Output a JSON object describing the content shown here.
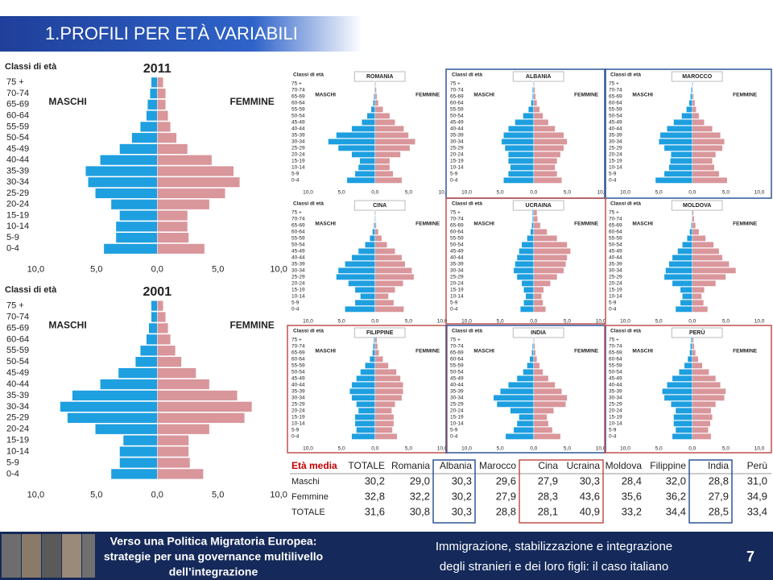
{
  "header": {
    "title": "1.PROFILI PER ETÀ VARIABILI"
  },
  "chart_data": [
    {
      "type": "pyramid",
      "title": "2011",
      "y_label": "Classi di età",
      "categories": [
        "75 +",
        "70-74",
        "65-69",
        "60-64",
        "55-59",
        "50-54",
        "45-49",
        "40-44",
        "35-39",
        "30-34",
        "25-29",
        "20-24",
        "15-19",
        "10-14",
        "5-9",
        "0-4"
      ],
      "series": [
        {
          "name": "MASCHI",
          "color": "#1e9fe0",
          "values": [
            0.5,
            0.6,
            0.8,
            0.9,
            1.4,
            2.1,
            3.1,
            4.7,
            5.9,
            5.7,
            5.1,
            3.8,
            3.1,
            3.4,
            3.4,
            4.4
          ]
        },
        {
          "name": "FEMMINE",
          "color": "#d9969b",
          "values": [
            0.5,
            0.7,
            0.7,
            0.9,
            1.1,
            1.6,
            2.5,
            4.5,
            6.3,
            6.8,
            5.6,
            4.3,
            2.5,
            2.5,
            2.6,
            3.9
          ]
        }
      ],
      "xlim": [
        0,
        10
      ],
      "xticks": [
        {
          "value": 10,
          "label": "10,0"
        },
        {
          "value": 5,
          "label": "5,0"
        },
        {
          "value": 0,
          "label": "0,0"
        },
        {
          "value": 5,
          "label": "5,0"
        },
        {
          "value": 10,
          "label": "10,0"
        }
      ]
    },
    {
      "type": "pyramid",
      "title": "2001",
      "y_label": "Classi di età",
      "categories": [
        "75 +",
        "70-74",
        "65-69",
        "60-64",
        "55-59",
        "50-54",
        "45-49",
        "40-44",
        "35-39",
        "30-34",
        "25-29",
        "20-24",
        "15-19",
        "10-14",
        "5-9",
        "0-4"
      ],
      "series": [
        {
          "name": "MASCHI",
          "color": "#1e9fe0",
          "values": [
            0.5,
            0.5,
            0.7,
            0.9,
            1.4,
            1.8,
            3.2,
            4.7,
            7.0,
            8.0,
            7.4,
            5.1,
            2.8,
            3.1,
            3.1,
            3.8
          ]
        },
        {
          "name": "FEMMINE",
          "color": "#d9969b",
          "values": [
            0.5,
            0.7,
            0.9,
            1.1,
            1.5,
            2.0,
            3.2,
            4.3,
            6.6,
            7.8,
            7.2,
            4.3,
            2.6,
            2.6,
            2.7,
            3.8
          ]
        }
      ],
      "xlim": [
        0,
        10
      ],
      "xticks": [
        {
          "value": 10,
          "label": "10,0"
        },
        {
          "value": 5,
          "label": "5,0"
        },
        {
          "value": 0,
          "label": "0,0"
        },
        {
          "value": 5,
          "label": "5,0"
        },
        {
          "value": 10,
          "label": "10,0"
        }
      ]
    },
    {
      "type": "pyramid",
      "title": "ROMANIA",
      "y_label": "Classi di età",
      "categories": [
        "75 +",
        "70-74",
        "65-69",
        "60-64",
        "55-59",
        "50-54",
        "45-49",
        "40-44",
        "35-39",
        "30-34",
        "25-29",
        "20-24",
        "15-19",
        "10-14",
        "5-9",
        "0-4"
      ],
      "series": [
        {
          "name": "MASCHI",
          "color": "#1e9fe0",
          "values": [
            0.1,
            0.1,
            0.2,
            0.3,
            0.6,
            1.2,
            2.0,
            3.5,
            5.8,
            7.0,
            5.5,
            3.5,
            2.3,
            2.5,
            3.0,
            4.2
          ]
        },
        {
          "name": "FEMMINE",
          "color": "#d9969b",
          "values": [
            0.1,
            0.2,
            0.3,
            0.5,
            1.2,
            2.2,
            3.0,
            4.3,
            5.0,
            6.0,
            5.2,
            3.8,
            2.2,
            2.2,
            2.7,
            4.0
          ]
        }
      ],
      "xlim": [
        0,
        10
      ],
      "xticks": [
        {
          "value": 10,
          "label": "10,0"
        },
        {
          "value": 5,
          "label": "5,0"
        },
        {
          "value": 0,
          "label": "0,0"
        },
        {
          "value": 5,
          "label": "5,0"
        },
        {
          "value": 10,
          "label": "10,"
        }
      ]
    },
    {
      "type": "pyramid",
      "title": "ALBANIA",
      "y_label": "Classi di età",
      "categories": [
        "75 +",
        "70-74",
        "65-69",
        "60-64",
        "55-59",
        "50-54",
        "45-49",
        "40-44",
        "35-39",
        "30-34",
        "25-29",
        "20-24",
        "15-19",
        "10-14",
        "5-9",
        "0-4"
      ],
      "series": [
        {
          "name": "MASCHI",
          "color": "#1e9fe0",
          "values": [
            0.1,
            0.2,
            0.2,
            0.4,
            0.8,
            1.6,
            2.8,
            3.8,
            4.5,
            4.8,
            4.3,
            3.8,
            3.8,
            3.5,
            3.8,
            4.5
          ]
        },
        {
          "name": "FEMMINE",
          "color": "#d9969b",
          "values": [
            0.1,
            0.2,
            0.3,
            0.5,
            0.9,
            1.4,
            2.2,
            3.2,
            4.5,
            5.0,
            4.5,
            4.0,
            3.5,
            3.2,
            3.5,
            4.2
          ]
        }
      ],
      "xlim": [
        0,
        10
      ],
      "xticks": [
        {
          "value": 10,
          "label": "10,0"
        },
        {
          "value": 5,
          "label": "5,0"
        },
        {
          "value": 0,
          "label": "0,0"
        },
        {
          "value": 5,
          "label": "5,0"
        },
        {
          "value": 10,
          "label": "10,"
        }
      ]
    },
    {
      "type": "pyramid",
      "title": "MAROCCO",
      "y_label": "Classi di età",
      "categories": [
        "75 +",
        "70-74",
        "65-69",
        "60-64",
        "55-59",
        "50-54",
        "45-49",
        "40-44",
        "35-39",
        "30-34",
        "25-29",
        "20-24",
        "15-19",
        "10-14",
        "5-9",
        "0-4"
      ],
      "series": [
        {
          "name": "MASCHI",
          "color": "#1e9fe0",
          "values": [
            0.1,
            0.2,
            0.3,
            0.5,
            0.9,
            1.6,
            2.8,
            3.8,
            4.8,
            5.0,
            4.2,
            3.2,
            3.3,
            3.5,
            4.2,
            5.5
          ]
        },
        {
          "name": "FEMMINE",
          "color": "#d9969b",
          "values": [
            0.1,
            0.1,
            0.2,
            0.4,
            0.6,
            1.0,
            1.8,
            3.0,
            4.2,
            4.8,
            4.5,
            3.5,
            3.0,
            3.3,
            4.0,
            5.2
          ]
        }
      ],
      "xlim": [
        0,
        10
      ],
      "xticks": [
        {
          "value": 10,
          "label": "10,0"
        },
        {
          "value": 5,
          "label": "5,0"
        },
        {
          "value": 0,
          "label": "0,0"
        },
        {
          "value": 5,
          "label": "5,0"
        },
        {
          "value": 10,
          "label": "10,0"
        }
      ]
    },
    {
      "type": "pyramid",
      "title": "CINA",
      "y_label": "Classi di età",
      "categories": [
        "75 +",
        "70-74",
        "65-69",
        "60-64",
        "55-59",
        "50-54",
        "45-49",
        "40-44",
        "35-39",
        "30-34",
        "25-29",
        "20-24",
        "15-19",
        "10-14",
        "5-9",
        "0-4"
      ],
      "series": [
        {
          "name": "MASCHI",
          "color": "#1e9fe0",
          "values": [
            0.1,
            0.1,
            0.2,
            0.4,
            0.8,
            1.5,
            2.5,
            3.5,
            4.5,
            5.5,
            5.8,
            4.0,
            3.0,
            2.2,
            3.0,
            4.5
          ]
        },
        {
          "name": "FEMMINE",
          "color": "#d9969b",
          "values": [
            0.1,
            0.1,
            0.2,
            0.5,
            1.0,
            1.8,
            3.0,
            4.0,
            4.5,
            5.5,
            5.8,
            4.2,
            3.0,
            2.0,
            2.8,
            4.3
          ]
        }
      ],
      "xlim": [
        0,
        10
      ],
      "xticks": [
        {
          "value": 10,
          "label": "10,0"
        },
        {
          "value": 5,
          "label": "5,0"
        },
        {
          "value": 0,
          "label": "0,0"
        },
        {
          "value": 5,
          "label": "5,0"
        },
        {
          "value": 10,
          "label": "10,0"
        }
      ]
    },
    {
      "type": "pyramid",
      "title": "UCRAINA",
      "y_label": "Classi di età",
      "categories": [
        "75 +",
        "70-74",
        "65-69",
        "60-64",
        "55-59",
        "50-54",
        "45-49",
        "40-44",
        "35-39",
        "30-34",
        "25-29",
        "20-24",
        "15-19",
        "10-14",
        "5-9",
        "0-4"
      ],
      "series": [
        {
          "name": "MASCHI",
          "color": "#1e9fe0",
          "values": [
            0.2,
            0.2,
            0.3,
            0.5,
            1.0,
            1.8,
            2.2,
            2.5,
            2.8,
            3.0,
            2.5,
            1.8,
            1.5,
            1.2,
            1.5,
            2.0
          ]
        },
        {
          "name": "FEMMINE",
          "color": "#d9969b",
          "values": [
            0.5,
            0.6,
            1.0,
            2.0,
            3.5,
            5.0,
            5.5,
            5.0,
            4.8,
            4.5,
            3.5,
            2.5,
            1.5,
            1.2,
            1.4,
            1.8
          ]
        }
      ],
      "xlim": [
        0,
        10
      ],
      "xticks": [
        {
          "value": 10,
          "label": "10,0"
        },
        {
          "value": 5,
          "label": "5,0"
        },
        {
          "value": 0,
          "label": "0,0"
        },
        {
          "value": 5,
          "label": "5,0"
        },
        {
          "value": 10,
          "label": "10,0"
        }
      ]
    },
    {
      "type": "pyramid",
      "title": "MOLDOVA",
      "y_label": "Classi di età",
      "categories": [
        "75 +",
        "70-74",
        "65-69",
        "60-64",
        "55-59",
        "50-54",
        "45-49",
        "40-44",
        "35-39",
        "30-34",
        "25-29",
        "20-24",
        "15-19",
        "10-14",
        "5-9",
        "0-4"
      ],
      "series": [
        {
          "name": "MASCHI",
          "color": "#1e9fe0",
          "values": [
            0.1,
            0.1,
            0.2,
            0.4,
            0.8,
            1.5,
            2.2,
            3.0,
            3.5,
            4.0,
            4.2,
            3.0,
            1.8,
            1.5,
            1.8,
            2.5
          ]
        },
        {
          "name": "FEMMINE",
          "color": "#d9969b",
          "values": [
            0.2,
            0.3,
            0.5,
            1.0,
            2.0,
            3.2,
            4.0,
            4.5,
            5.5,
            6.5,
            5.0,
            3.5,
            1.8,
            1.4,
            1.7,
            2.3
          ]
        }
      ],
      "xlim": [
        0,
        10
      ],
      "xticks": [
        {
          "value": 10,
          "label": "10,0"
        },
        {
          "value": 5,
          "label": "5,0"
        },
        {
          "value": 0,
          "label": "0,0"
        },
        {
          "value": 5,
          "label": "5,0"
        },
        {
          "value": 10,
          "label": "10,0"
        }
      ]
    },
    {
      "type": "pyramid",
      "title": "FILIPPINE",
      "y_label": "Classi di età",
      "categories": [
        "75 +",
        "70-74",
        "65-69",
        "60-64",
        "55-59",
        "50-54",
        "45-49",
        "40-44",
        "35-39",
        "30-34",
        "25-29",
        "20-24",
        "15-19",
        "10-14",
        "5-9",
        "0-4"
      ],
      "series": [
        {
          "name": "MASCHI",
          "color": "#1e9fe0",
          "values": [
            0.2,
            0.3,
            0.4,
            0.8,
            1.5,
            2.2,
            2.8,
            3.5,
            3.8,
            3.5,
            2.8,
            2.5,
            3.0,
            3.0,
            2.8,
            3.5
          ]
        },
        {
          "name": "FEMMINE",
          "color": "#d9969b",
          "values": [
            0.3,
            0.4,
            0.6,
            1.2,
            2.0,
            3.2,
            3.8,
            4.2,
            4.2,
            4.0,
            3.0,
            2.5,
            2.8,
            2.8,
            2.6,
            3.3
          ]
        }
      ],
      "xlim": [
        0,
        10
      ],
      "xticks": [
        {
          "value": 10,
          "label": "10,0"
        },
        {
          "value": 5,
          "label": "5,0"
        },
        {
          "value": 0,
          "label": "0,0"
        },
        {
          "value": 5,
          "label": "5,0"
        },
        {
          "value": 10,
          "label": "10,0"
        }
      ]
    },
    {
      "type": "pyramid",
      "title": "INDIA",
      "y_label": "Classi di età",
      "categories": [
        "75 +",
        "70-74",
        "65-69",
        "60-64",
        "55-59",
        "50-54",
        "45-49",
        "40-44",
        "35-39",
        "30-34",
        "25-29",
        "20-24",
        "15-19",
        "10-14",
        "5-9",
        "0-4"
      ],
      "series": [
        {
          "name": "MASCHI",
          "color": "#1e9fe0",
          "values": [
            0.1,
            0.2,
            0.3,
            0.6,
            1.0,
            1.6,
            2.5,
            3.8,
            5.0,
            6.0,
            5.5,
            3.5,
            2.2,
            2.5,
            3.0,
            4.2
          ]
        },
        {
          "name": "FEMMINE",
          "color": "#d9969b",
          "values": [
            0.1,
            0.2,
            0.3,
            0.5,
            0.9,
            1.4,
            2.2,
            3.2,
            4.2,
            5.0,
            4.8,
            3.0,
            2.0,
            2.2,
            2.8,
            4.0
          ]
        }
      ],
      "xlim": [
        0,
        10
      ],
      "xticks": [
        {
          "value": 10,
          "label": "10,0"
        },
        {
          "value": 5,
          "label": "5,0"
        },
        {
          "value": 0,
          "label": "0,0"
        },
        {
          "value": 5,
          "label": "5,0"
        },
        {
          "value": 10,
          "label": "10,0"
        }
      ]
    },
    {
      "type": "pyramid",
      "title": "PERÙ",
      "y_label": "Classi di età",
      "categories": [
        "75 +",
        "70-74",
        "65-69",
        "60-64",
        "55-59",
        "50-54",
        "45-49",
        "40-44",
        "35-39",
        "30-34",
        "25-29",
        "20-24",
        "15-19",
        "10-14",
        "5-9",
        "0-4"
      ],
      "series": [
        {
          "name": "MASCHI",
          "color": "#1e9fe0",
          "values": [
            0.2,
            0.3,
            0.4,
            0.7,
            1.2,
            2.0,
            3.0,
            3.8,
            4.5,
            4.2,
            3.2,
            2.5,
            2.8,
            2.8,
            2.5,
            3.0
          ]
        },
        {
          "name": "FEMMINE",
          "color": "#d9969b",
          "values": [
            0.2,
            0.3,
            0.5,
            0.9,
            1.5,
            2.5,
            3.5,
            4.2,
            5.0,
            4.8,
            3.5,
            2.8,
            3.0,
            2.7,
            2.4,
            2.8
          ]
        }
      ],
      "xlim": [
        0,
        10
      ],
      "xticks": [
        {
          "value": 10,
          "label": "10,0"
        },
        {
          "value": 5,
          "label": "5,0"
        },
        {
          "value": 0,
          "label": "0,0"
        },
        {
          "value": 5,
          "label": "5,0"
        },
        {
          "value": 10,
          "label": "10,0"
        }
      ]
    }
  ],
  "table": {
    "header": [
      "Età media",
      "TOTALE",
      "Romania",
      "Albania",
      "Marocco",
      "Cina",
      "Ucraina",
      "Moldova",
      "Filippine",
      "India",
      "Perù"
    ],
    "rows": [
      [
        "Maschi",
        "30,2",
        "29,0",
        "30,3",
        "29,6",
        "27,9",
        "30,3",
        "28,4",
        "32,0",
        "28,8",
        "31,0"
      ],
      [
        "Femmine",
        "32,8",
        "32,2",
        "30,2",
        "27,9",
        "28,3",
        "43,6",
        "35,6",
        "36,2",
        "27,9",
        "34,9"
      ],
      [
        "TOTALE",
        "31,6",
        "30,8",
        "30,3",
        "28,8",
        "28,1",
        "40,9",
        "33,2",
        "34,4",
        "28,5",
        "33,4"
      ]
    ]
  },
  "footer": {
    "left": [
      "Verso una Politica Migratoria Europea:",
      "strategie per una governance multilivello",
      "dell’integrazione"
    ],
    "right": [
      "Immigrazione, stabilizzazione e integrazione",
      "degli stranieri e dei loro figli: il caso italiano"
    ],
    "page": "7"
  }
}
